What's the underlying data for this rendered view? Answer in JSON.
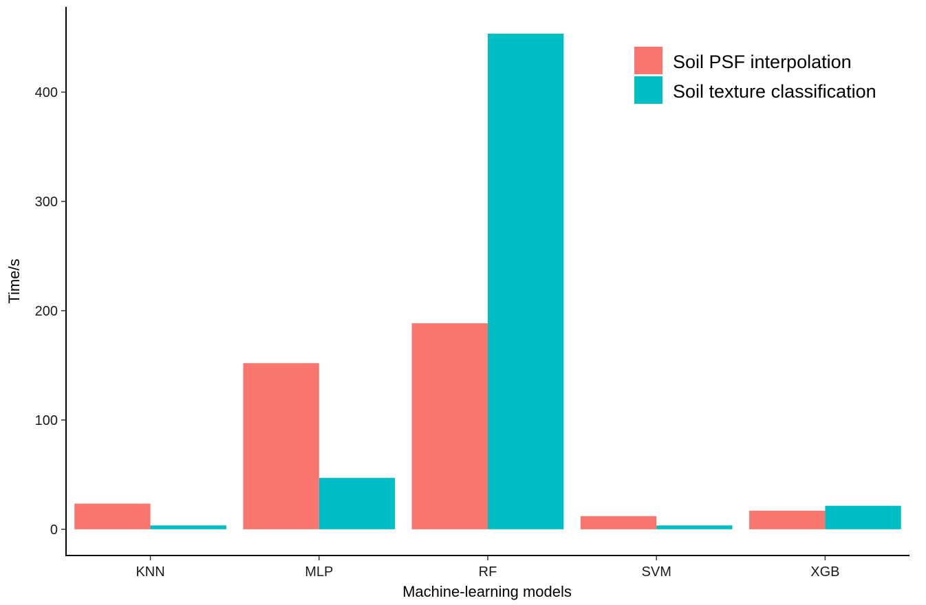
{
  "chart_data": {
    "type": "bar",
    "title": "",
    "xlabel": "Machine-learning models",
    "ylabel": "Time/s",
    "categories": [
      "KNN",
      "MLP",
      "RF",
      "SVM",
      "XGB"
    ],
    "series": [
      {
        "name": "Soil PSF interpolation",
        "color": "#F8766D",
        "values": [
          23.5,
          152,
          188.5,
          12,
          17
        ]
      },
      {
        "name": "Soil texture classification",
        "color": "#00BFC4",
        "values": [
          3.5,
          47,
          453.5,
          3.5,
          21.5
        ]
      }
    ],
    "ylim": [
      -24,
      478
    ],
    "yticks": [
      0,
      100,
      200,
      300,
      400
    ],
    "grid": false,
    "legend_position": "top-right"
  }
}
